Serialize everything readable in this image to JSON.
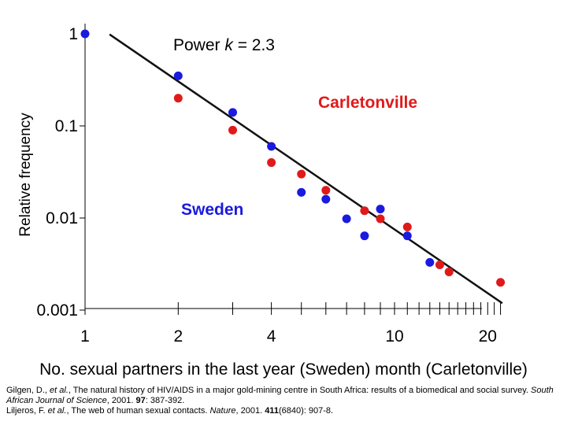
{
  "chart_data": {
    "type": "scatter",
    "xscale": "log",
    "yscale": "log",
    "xlim": [
      1,
      25
    ],
    "ylim": [
      0.001,
      1
    ],
    "x_tick_labels": [
      "1",
      "2",
      "4",
      "10",
      "20"
    ],
    "y_tick_labels": [
      "1",
      "0.1",
      "0.01",
      "0.001"
    ],
    "xlabel": "No. sexual partners in the last year (Sweden) month (Carletonville)",
    "ylabel": "Relative frequency",
    "annotations": {
      "fit": "Power k = 2.3"
    },
    "series": [
      {
        "name": "Sweden",
        "color": "#1a1ae0",
        "points": [
          [
            1,
            1.0
          ],
          [
            2,
            0.35
          ],
          [
            3,
            0.14
          ],
          [
            4,
            0.06
          ],
          [
            5,
            0.019
          ],
          [
            6,
            0.016
          ],
          [
            7,
            0.0098
          ],
          [
            8,
            0.0064
          ],
          [
            9,
            0.0125
          ],
          [
            11,
            0.0064
          ],
          [
            13,
            0.0033
          ]
        ]
      },
      {
        "name": "Carletonville",
        "color": "#e01a1a",
        "points": [
          [
            2,
            0.2
          ],
          [
            3,
            0.09
          ],
          [
            4,
            0.04
          ],
          [
            5,
            0.03
          ],
          [
            6,
            0.02
          ],
          [
            8,
            0.012
          ],
          [
            9,
            0.0098
          ],
          [
            11,
            0.008
          ],
          [
            14,
            0.0031
          ],
          [
            15,
            0.0026
          ],
          [
            22,
            0.002
          ]
        ]
      }
    ],
    "fit_line": {
      "k": 2.3,
      "color": "#111111"
    }
  },
  "references": [
    {
      "authors": "Gilgen, D., ",
      "etal": "et al.",
      "title": ", The natural history of HIV/AIDS in a major gold-mining centre in South Africa: results of a biomedical and social survey. ",
      "journal": "South African Journal of Science",
      "year": ", 2001. ",
      "volume": "97",
      "pages": ": 387-392."
    },
    {
      "authors": "Liljeros, F. ",
      "etal": "et al.",
      "title": ", The web of human sexual contacts. ",
      "journal": "Nature",
      "year": ", 2001. ",
      "volume": "411",
      "pages": "(6840): 907-8."
    }
  ]
}
